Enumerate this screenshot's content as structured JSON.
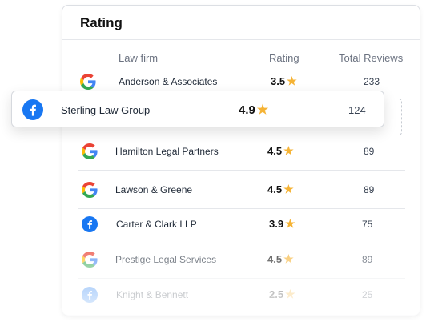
{
  "card": {
    "title": "Rating",
    "columns": {
      "firm": "Law firm",
      "rating": "Rating",
      "reviews": "Total Reviews"
    }
  },
  "rows": [
    {
      "source": "google-icon",
      "name": "Anderson & Associates",
      "rating": "3.5",
      "reviews": "233"
    },
    {
      "source": "google-icon",
      "name": "Hamilton Legal Partners",
      "rating": "4.5",
      "reviews": "89"
    },
    {
      "source": "google-icon",
      "name": "Lawson & Greene",
      "rating": "4.5",
      "reviews": "89"
    },
    {
      "source": "facebook-icon",
      "name": "Carter & Clark LLP",
      "rating": "3.9",
      "reviews": "75"
    },
    {
      "source": "google-icon",
      "name": "Prestige Legal Services",
      "rating": "4.5",
      "reviews": "89"
    },
    {
      "source": "facebook-icon",
      "name": "Knight & Bennett",
      "rating": "2.5",
      "reviews": "25"
    }
  ],
  "highlight": {
    "source": "facebook-icon",
    "name": "Sterling Law Group",
    "rating": "4.9",
    "reviews": "124"
  },
  "colors": {
    "star": "#f5b335",
    "facebook": "#1877f2",
    "google_blue": "#4285f4",
    "google_red": "#ea4335",
    "google_yellow": "#fbbc05",
    "google_green": "#34a853"
  }
}
